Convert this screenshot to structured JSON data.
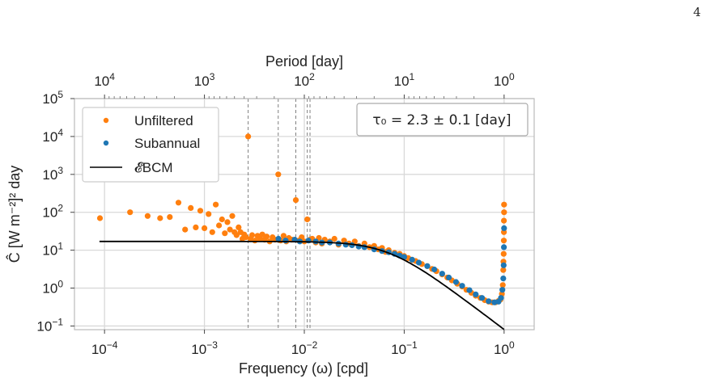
{
  "page_number": "4",
  "colors": {
    "unfiltered": "#ff7f0e",
    "subannual": "#1f77b4",
    "fit": "#000000",
    "grid": "#d9d9d9",
    "vlines": "#808080"
  },
  "chart_data": {
    "type": "scatter",
    "xscale": "log",
    "yscale": "log",
    "xlim": [
      5e-05,
      2
    ],
    "ylim": [
      0.08,
      100000
    ],
    "grid": true,
    "xlabel": "Frequency (ω) [cpd]",
    "ylabel": "Ĉ [W m⁻²]² day",
    "top_axis_label": "Period [day]",
    "x_ticks": [
      {
        "value": 0.0001,
        "base": "10",
        "exp": "−4"
      },
      {
        "value": 0.001,
        "base": "10",
        "exp": "−3"
      },
      {
        "value": 0.01,
        "base": "10",
        "exp": "−2"
      },
      {
        "value": 0.1,
        "base": "10",
        "exp": "−1"
      },
      {
        "value": 1,
        "base": "10",
        "exp": "0"
      }
    ],
    "y_ticks": [
      {
        "value": 0.1,
        "base": "10",
        "exp": "−1"
      },
      {
        "value": 1,
        "base": "10",
        "exp": "0"
      },
      {
        "value": 10,
        "base": "10",
        "exp": "1"
      },
      {
        "value": 100,
        "base": "10",
        "exp": "2"
      },
      {
        "value": 1000,
        "base": "10",
        "exp": "3"
      },
      {
        "value": 10000,
        "base": "10",
        "exp": "4"
      },
      {
        "value": 100000,
        "base": "10",
        "exp": "5"
      }
    ],
    "top_ticks": [
      {
        "period": 10000,
        "base": "10",
        "exp": "4"
      },
      {
        "period": 1000,
        "base": "10",
        "exp": "3"
      },
      {
        "period": 100,
        "base": "10",
        "exp": "2"
      },
      {
        "period": 10,
        "base": "10",
        "exp": "1"
      },
      {
        "period": 1,
        "base": "10",
        "exp": "0"
      }
    ],
    "vertical_lines_x": [
      0.00274,
      0.00548,
      0.00822,
      0.0107,
      0.0114
    ],
    "annotation": "τ₀ = 2.3 ± 0.1 [day]",
    "legend_position": "upper-left",
    "series": [
      {
        "name": "Unfiltered",
        "kind": "scatter",
        "points": [
          [
            9e-05,
            70
          ],
          [
            0.00018,
            100
          ],
          [
            0.00027,
            80
          ],
          [
            0.00036,
            70
          ],
          [
            0.00045,
            75
          ],
          [
            0.00055,
            180
          ],
          [
            0.00064,
            35
          ],
          [
            0.00073,
            130
          ],
          [
            0.00082,
            40
          ],
          [
            0.00091,
            110
          ],
          [
            0.001,
            38
          ],
          [
            0.0011,
            90
          ],
          [
            0.0012,
            30
          ],
          [
            0.0013,
            160
          ],
          [
            0.0014,
            45
          ],
          [
            0.0015,
            65
          ],
          [
            0.0016,
            28
          ],
          [
            0.0017,
            55
          ],
          [
            0.0018,
            35
          ],
          [
            0.0019,
            80
          ],
          [
            0.002,
            30
          ],
          [
            0.0021,
            25
          ],
          [
            0.0022,
            40
          ],
          [
            0.0023,
            30
          ],
          [
            0.0024,
            20
          ],
          [
            0.0025,
            26
          ],
          [
            0.0026,
            22
          ],
          [
            0.00274,
            10000
          ],
          [
            0.0029,
            20
          ],
          [
            0.003,
            25
          ],
          [
            0.0032,
            18
          ],
          [
            0.0034,
            24
          ],
          [
            0.0036,
            20
          ],
          [
            0.0038,
            26
          ],
          [
            0.004,
            19
          ],
          [
            0.0042,
            23
          ],
          [
            0.0045,
            17
          ],
          [
            0.0048,
            22
          ],
          [
            0.0051,
            19
          ],
          [
            0.00548,
            1000
          ],
          [
            0.0058,
            18
          ],
          [
            0.0062,
            24
          ],
          [
            0.0066,
            17
          ],
          [
            0.007,
            21
          ],
          [
            0.0075,
            19
          ],
          [
            0.00822,
            210
          ],
          [
            0.0088,
            18
          ],
          [
            0.0094,
            22
          ],
          [
            0.01,
            17
          ],
          [
            0.0107,
            65
          ],
          [
            0.0114,
            19
          ],
          [
            0.012,
            20
          ],
          [
            0.013,
            16
          ],
          [
            0.014,
            21
          ],
          [
            0.015,
            15
          ],
          [
            0.016,
            19
          ],
          [
            0.018,
            17
          ],
          [
            0.02,
            20
          ],
          [
            0.022,
            14
          ],
          [
            0.025,
            18
          ],
          [
            0.028,
            15
          ],
          [
            0.032,
            17
          ],
          [
            0.035,
            13
          ],
          [
            0.04,
            15
          ],
          [
            0.045,
            12
          ],
          [
            0.05,
            13
          ],
          [
            0.055,
            10.5
          ],
          [
            0.06,
            11.5
          ],
          [
            0.065,
            9
          ],
          [
            0.07,
            10
          ],
          [
            0.08,
            8.5
          ],
          [
            0.09,
            8
          ],
          [
            0.1,
            7
          ],
          [
            0.11,
            6.2
          ],
          [
            0.12,
            5.5
          ],
          [
            0.13,
            5.2
          ],
          [
            0.15,
            4.3
          ],
          [
            0.17,
            3.8
          ],
          [
            0.19,
            3.2
          ],
          [
            0.21,
            2.8
          ],
          [
            0.24,
            2.3
          ],
          [
            0.27,
            1.9
          ],
          [
            0.3,
            1.6
          ],
          [
            0.34,
            1.3
          ],
          [
            0.38,
            1.1
          ],
          [
            0.42,
            0.9
          ],
          [
            0.47,
            0.75
          ],
          [
            0.52,
            0.63
          ],
          [
            0.58,
            0.55
          ],
          [
            0.64,
            0.48
          ],
          [
            0.7,
            0.44
          ],
          [
            0.76,
            0.42
          ],
          [
            0.82,
            0.42
          ],
          [
            0.88,
            0.46
          ],
          [
            0.92,
            0.5
          ],
          [
            0.95,
            0.7
          ],
          [
            0.97,
            1.2
          ],
          [
            0.98,
            3
          ],
          [
            0.99,
            8
          ],
          [
            0.995,
            30
          ],
          [
            1.0,
            160
          ],
          [
            1.0,
            100
          ],
          [
            0.996,
            60
          ],
          [
            0.993,
            18
          ],
          [
            0.985,
            5
          ]
        ]
      },
      {
        "name": "Subannual",
        "kind": "scatter",
        "points": [
          [
            0.0055,
            20
          ],
          [
            0.0065,
            18
          ],
          [
            0.008,
            19
          ],
          [
            0.009,
            17
          ],
          [
            0.011,
            18
          ],
          [
            0.013,
            17
          ],
          [
            0.015,
            16
          ],
          [
            0.018,
            16
          ],
          [
            0.022,
            15
          ],
          [
            0.026,
            14
          ],
          [
            0.03,
            13.5
          ],
          [
            0.035,
            12.5
          ],
          [
            0.04,
            12
          ],
          [
            0.05,
            10.5
          ],
          [
            0.06,
            9.5
          ],
          [
            0.07,
            8.8
          ],
          [
            0.08,
            8
          ],
          [
            0.09,
            7.2
          ],
          [
            0.1,
            6.6
          ],
          [
            0.12,
            5.6
          ],
          [
            0.14,
            4.7
          ],
          [
            0.17,
            3.8
          ],
          [
            0.2,
            3.1
          ],
          [
            0.24,
            2.4
          ],
          [
            0.28,
            1.9
          ],
          [
            0.33,
            1.45
          ],
          [
            0.38,
            1.15
          ],
          [
            0.45,
            0.88
          ],
          [
            0.52,
            0.68
          ],
          [
            0.6,
            0.55
          ],
          [
            0.7,
            0.45
          ],
          [
            0.8,
            0.42
          ],
          [
            0.88,
            0.44
          ],
          [
            0.93,
            0.55
          ],
          [
            0.96,
            0.9
          ],
          [
            0.98,
            1.8
          ],
          [
            0.99,
            4
          ],
          [
            0.995,
            12
          ],
          [
            1.0,
            38
          ]
        ]
      },
      {
        "name": "𝓔BCM",
        "kind": "line",
        "tau0_days": 2.3,
        "plateau": 17,
        "x_range": [
          5e-05,
          1
        ]
      }
    ]
  }
}
